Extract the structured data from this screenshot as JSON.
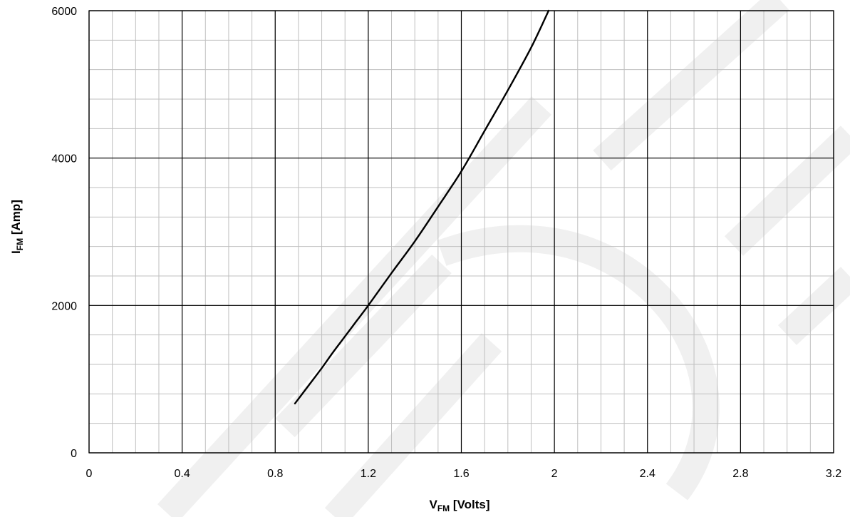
{
  "chart_data": {
    "type": "line",
    "xlabel": {
      "main": "V",
      "sub": "FM",
      "rest": " [Volts]"
    },
    "ylabel": {
      "main": "I",
      "sub": "FM",
      "rest": "  [Amp]"
    },
    "xlim": [
      0,
      3.2
    ],
    "ylim": [
      0,
      6000
    ],
    "x_major_step": 0.4,
    "y_major_step": 2000,
    "x_minor_step": 0.1,
    "y_minor_step": 400,
    "x_tick_labels": [
      "0",
      "0.4",
      "0.8",
      "1.2",
      "1.6",
      "2",
      "2.4",
      "2.8",
      "3.2"
    ],
    "y_tick_labels": [
      "0",
      "2000",
      "4000",
      "6000"
    ],
    "grid": true,
    "watermark": "HDU",
    "colors": {
      "line": "#000000",
      "major_grid": "#000000",
      "minor_grid": "#bfbfbf",
      "watermark": "#f0f0f0"
    },
    "series": [
      {
        "x": [
          0.885,
          0.95,
          1.0,
          1.05,
          1.1,
          1.15,
          1.2,
          1.3,
          1.4,
          1.5,
          1.6,
          1.7,
          1.8,
          1.9,
          1.975
        ],
        "y": [
          670,
          940,
          1150,
          1370,
          1580,
          1790,
          2000,
          2440,
          2870,
          3340,
          3820,
          4370,
          4920,
          5500,
          6000
        ]
      }
    ]
  }
}
